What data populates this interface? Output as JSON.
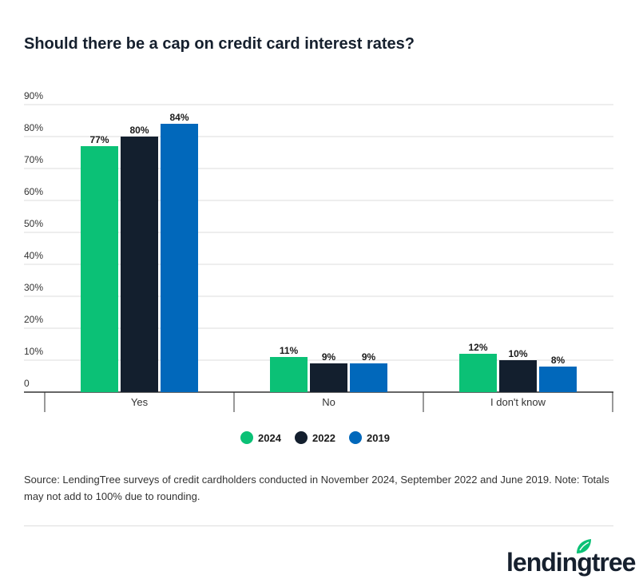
{
  "chart_data": {
    "type": "bar",
    "title": "Should there be a cap on credit card interest rates?",
    "categories": [
      "Yes",
      "No",
      "I don't know"
    ],
    "series": [
      {
        "name": "2024",
        "color": "#0bc176",
        "values": [
          77,
          11,
          12
        ]
      },
      {
        "name": "2022",
        "color": "#131f2e",
        "values": [
          80,
          9,
          10
        ]
      },
      {
        "name": "2019",
        "color": "#0168bb",
        "values": [
          84,
          9,
          8
        ]
      }
    ],
    "yticks": [
      "0",
      "10%",
      "20%",
      "30%",
      "40%",
      "50%",
      "60%",
      "70%",
      "80%",
      "90%"
    ],
    "ylim": [
      0,
      90
    ],
    "grid": true,
    "legend_placement": "bottom",
    "value_suffix": "%"
  },
  "source": "Source: LendingTree surveys of credit cardholders conducted in November 2024, September 2022 and June 2019. Note: Totals may not add to 100% due to rounding.",
  "logo": {
    "text": "lendingtree",
    "icon": "leaf-icon"
  }
}
